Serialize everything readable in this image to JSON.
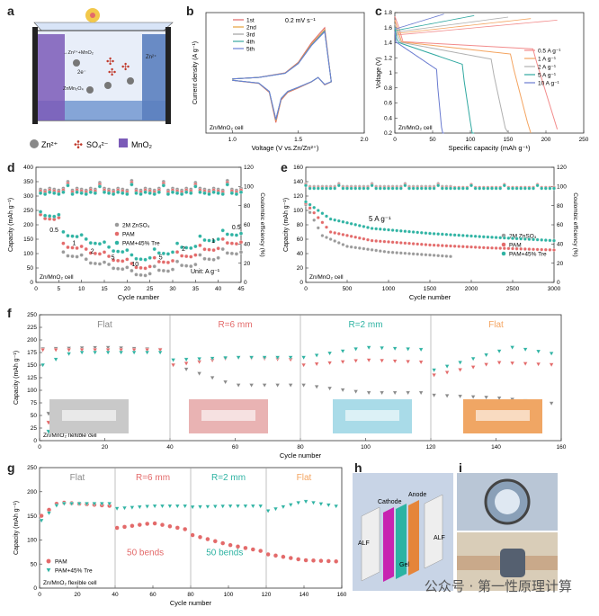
{
  "panels": {
    "a": {
      "label": "a",
      "legend": [
        "Zn²⁺",
        "SO₄²⁻",
        "MnO₂"
      ],
      "reaction_top": "→Zn²⁺+MnO₂",
      "reaction_bottom": "ZnMn₂O₄",
      "e_label": "2e⁻",
      "zn_label": "Zn²⁺"
    },
    "h": {
      "label": "h",
      "cathode": "Cathode",
      "anode": "Anode",
      "gel": "Gel",
      "alf_left": "ALF",
      "alf_right": "ALF"
    },
    "i": {
      "label": "i"
    }
  },
  "watermark": "公众号 · 第一性原理计算",
  "chart_data": [
    {
      "id": "b",
      "type": "line",
      "title": "",
      "xlabel": "Voltage (V vs.Zn/Zn²⁺)",
      "ylabel": "Current density (A g⁻¹)",
      "xlim": [
        0.8,
        2.0
      ],
      "xticks": [
        1.0,
        1.5,
        2.0
      ],
      "xtick_labels": [
        "1.0",
        "1.5",
        "2.0"
      ],
      "annotation": "Zn/MnO₂ cell",
      "rate": "0.2 mV s⁻¹",
      "series": [
        {
          "name": "1st",
          "color": "#e06666"
        },
        {
          "name": "2nd",
          "color": "#e6a23c"
        },
        {
          "name": "3rd",
          "color": "#a0a0a0"
        },
        {
          "name": "4th",
          "color": "#39a7a0"
        },
        {
          "name": "5th",
          "color": "#6b7fd7"
        }
      ],
      "curve": {
        "x": [
          1.0,
          1.2,
          1.28,
          1.33,
          1.37,
          1.42,
          1.5,
          1.6,
          1.65,
          1.7,
          1.75,
          1.7,
          1.6,
          1.5,
          1.4,
          1.2,
          1.0
        ],
        "y": [
          -0.05,
          -0.15,
          -0.45,
          -1.45,
          -0.7,
          -0.45,
          -0.3,
          -0.1,
          0.05,
          -0.2,
          -0.1,
          1.7,
          1.2,
          0.55,
          0.2,
          0.05,
          0.0
        ]
      }
    },
    {
      "id": "c",
      "type": "line",
      "xlabel": "Specific capacity (mAh g⁻¹)",
      "ylabel": "Voltage (V)",
      "xlim": [
        0,
        250
      ],
      "ylim": [
        0.2,
        1.8
      ],
      "xticks": [
        0,
        50,
        100,
        150,
        200,
        250
      ],
      "yticks": [
        0.2,
        0.4,
        0.6,
        0.8,
        1.0,
        1.2,
        1.4,
        1.6,
        1.8
      ],
      "annotation": "Zn/MnO₂ cell",
      "series": [
        {
          "name": "0.5 A g⁻¹",
          "color": "#f28b8b",
          "cap": 215
        },
        {
          "name": "1 A g⁻¹",
          "color": "#f4a460",
          "cap": 180
        },
        {
          "name": "2 A g⁻¹",
          "color": "#b0b0b0",
          "cap": 150
        },
        {
          "name": "5 A g⁻¹",
          "color": "#2fa8a0",
          "cap": 105
        },
        {
          "name": "10 A g⁻¹",
          "color": "#6a7bd0",
          "cap": 65
        }
      ]
    },
    {
      "id": "d",
      "type": "scatter",
      "xlabel": "Cycle number",
      "ylabel": "Capacity (mAh g⁻¹)",
      "y2label": "Coulombic efficiency (%)",
      "xlim": [
        0,
        45
      ],
      "ylim": [
        0,
        400
      ],
      "y2lim": [
        0,
        120
      ],
      "xticks": [
        0,
        5,
        10,
        15,
        20,
        25,
        30,
        35,
        40,
        45
      ],
      "yticks": [
        0,
        50,
        100,
        150,
        200,
        250,
        300,
        350,
        400
      ],
      "y2ticks": [
        0,
        20,
        40,
        60,
        80,
        100,
        120
      ],
      "annotation": "Zn/MnO₂ cell",
      "unit_note": "Unit: A g⁻¹",
      "rate_labels": [
        {
          "text": "0.5",
          "x": 3,
          "y": 175
        },
        {
          "text": "1",
          "x": 8,
          "y": 130
        },
        {
          "text": "2",
          "x": 12,
          "y": 102
        },
        {
          "text": "5",
          "x": 16.5,
          "y": 80
        },
        {
          "text": "10",
          "x": 21,
          "y": 57
        },
        {
          "text": "5",
          "x": 27,
          "y": 80
        },
        {
          "text": "2",
          "x": 32,
          "y": 110
        },
        {
          "text": "1",
          "x": 38.5,
          "y": 138
        },
        {
          "text": "0.5",
          "x": 43,
          "y": 185
        }
      ],
      "series": [
        {
          "name": "2M ZnSO₄",
          "color": "#9a9a9a",
          "marker": "circle",
          "capacity_steps": [
            [
              1,
              225
            ],
            [
              5,
              95
            ],
            [
              10,
              70
            ],
            [
              15,
              52
            ],
            [
              20,
              30
            ],
            [
              25,
              45
            ],
            [
              30,
              62
            ],
            [
              35,
              85
            ],
            [
              40,
              105
            ]
          ]
        },
        {
          "name": "PAM",
          "color": "#e36a6a",
          "marker": "circle",
          "capacity_steps": [
            [
              1,
              225
            ],
            [
              5,
              125
            ],
            [
              10,
              105
            ],
            [
              15,
              80
            ],
            [
              20,
              55
            ],
            [
              25,
              75
            ],
            [
              30,
              95
            ],
            [
              35,
              118
            ],
            [
              40,
              140
            ]
          ]
        },
        {
          "name": "PAM+45% Tre",
          "color": "#2fb3a3",
          "marker": "circle",
          "capacity_steps": [
            [
              1,
              235
            ],
            [
              5,
              165
            ],
            [
              10,
              140
            ],
            [
              15,
              112
            ],
            [
              20,
              85
            ],
            [
              25,
              105
            ],
            [
              30,
              125
            ],
            [
              35,
              150
            ],
            [
              40,
              170
            ]
          ]
        }
      ],
      "ce_level": 98
    },
    {
      "id": "e",
      "type": "scatter",
      "xlabel": "Cycle number",
      "ylabel": "Capacity (mAh g⁻¹)",
      "y2label": "Coulombic efficiency (%)",
      "xlim": [
        0,
        3000
      ],
      "ylim": [
        0,
        160
      ],
      "y2lim": [
        0,
        120
      ],
      "xticks": [
        0,
        500,
        1000,
        1500,
        2000,
        2500,
        3000
      ],
      "yticks": [
        0,
        20,
        40,
        60,
        80,
        100,
        120,
        140,
        160
      ],
      "y2ticks": [
        0,
        20,
        40,
        60,
        80,
        100,
        120
      ],
      "annotation": "Zn/MnO₂ cell",
      "rate_note": "5 A g⁻¹",
      "series": [
        {
          "name": "2M ZnSO₄",
          "color": "#9a9a9a",
          "end_cycle": 1750,
          "curve": [
            [
              0,
              108
            ],
            [
              200,
              65
            ],
            [
              500,
              50
            ],
            [
              1000,
              42
            ],
            [
              1500,
              38
            ],
            [
              1750,
              36
            ]
          ]
        },
        {
          "name": "PAM",
          "color": "#e36a6a",
          "end_cycle": 3000,
          "curve": [
            [
              0,
              110
            ],
            [
              300,
              70
            ],
            [
              800,
              58
            ],
            [
              1500,
              52
            ],
            [
              2200,
              48
            ],
            [
              3000,
              45
            ]
          ]
        },
        {
          "name": "PAM+45% Tre",
          "color": "#2fb3a3",
          "end_cycle": 3000,
          "curve": [
            [
              0,
              112
            ],
            [
              300,
              88
            ],
            [
              800,
              75
            ],
            [
              1500,
              68
            ],
            [
              2200,
              63
            ],
            [
              3000,
              58
            ]
          ]
        }
      ],
      "ce_level": 100
    },
    {
      "id": "f",
      "type": "scatter",
      "xlabel": "Cycle number",
      "ylabel": "Capacity (mAh g⁻¹)",
      "xlim": [
        0,
        160
      ],
      "ylim": [
        0,
        250
      ],
      "xticks": [
        0,
        20,
        40,
        60,
        80,
        100,
        120,
        140,
        160
      ],
      "yticks": [
        0,
        25,
        50,
        75,
        100,
        125,
        150,
        175,
        200,
        225,
        250
      ],
      "annotation": "Zn/MnO₂ flexible cell",
      "sections": [
        {
          "label": "Flat",
          "color": "#8a8a8a",
          "center": 20
        },
        {
          "label": "R=6 mm",
          "color": "#e36a6a",
          "center": 60
        },
        {
          "label": "R=2 mm",
          "color": "#2fb3a3",
          "center": 100
        },
        {
          "label": "Flat",
          "color": "#f4a460",
          "center": 140
        }
      ],
      "dividers": [
        40,
        80,
        120
      ],
      "series": [
        {
          "name": "2M ZnSO₄",
          "color": "#8a8a8a",
          "marker": "triangle-down",
          "curve": [
            [
              1,
              182
            ],
            [
              20,
              185
            ],
            [
              40,
              180
            ],
            [
              41,
              150
            ],
            [
              60,
              110
            ],
            [
              80,
              110
            ],
            [
              81,
              110
            ],
            [
              100,
              95
            ],
            [
              120,
              95
            ],
            [
              121,
              90
            ],
            [
              140,
              85
            ],
            [
              160,
              72
            ]
          ]
        },
        {
          "name": "PAM",
          "color": "#e36a6a",
          "marker": "triangle-down",
          "curve": [
            [
              1,
              180
            ],
            [
              20,
              180
            ],
            [
              40,
              180
            ],
            [
              41,
              150
            ],
            [
              60,
              165
            ],
            [
              80,
              160
            ],
            [
              81,
              150
            ],
            [
              100,
              160
            ],
            [
              120,
              155
            ],
            [
              121,
              130
            ],
            [
              140,
              155
            ],
            [
              160,
              150
            ]
          ]
        },
        {
          "name": "PAM+45% Tre",
          "color": "#2fb3a3",
          "marker": "triangle-down",
          "curve": [
            [
              1,
              150
            ],
            [
              10,
              175
            ],
            [
              40,
              175
            ],
            [
              41,
              160
            ],
            [
              60,
              165
            ],
            [
              80,
              165
            ],
            [
              81,
              165
            ],
            [
              100,
              185
            ],
            [
              120,
              180
            ],
            [
              121,
              140
            ],
            [
              145,
              185
            ],
            [
              160,
              170
            ]
          ]
        }
      ]
    },
    {
      "id": "g",
      "type": "scatter",
      "xlabel": "Cycle number",
      "ylabel": "Capacity (mAh g⁻¹)",
      "xlim": [
        0,
        160
      ],
      "ylim": [
        0,
        250
      ],
      "xticks": [
        0,
        20,
        40,
        60,
        80,
        100,
        120,
        140,
        160
      ],
      "yticks": [
        0,
        50,
        100,
        150,
        200,
        250
      ],
      "annotation": "Zn/MnO₂ flexible cell",
      "sections": [
        {
          "label": "Flat",
          "color": "#8a8a8a",
          "center": 20
        },
        {
          "label": "R=6 mm",
          "color": "#e36a6a",
          "center": 60
        },
        {
          "label": "R=2 mm",
          "color": "#2fb3a3",
          "center": 100
        },
        {
          "label": "Flat",
          "color": "#f4a460",
          "center": 140
        }
      ],
      "dividers": [
        40,
        80,
        120
      ],
      "bends_labels": [
        {
          "text": "50 bends",
          "color": "#e36a6a",
          "x": 56,
          "y": 68
        },
        {
          "text": "50 bends",
          "color": "#2fb3a3",
          "x": 98,
          "y": 68
        }
      ],
      "series": [
        {
          "name": "PAM",
          "color": "#e36a6a",
          "marker": "circle",
          "curve": [
            [
              1,
              150
            ],
            [
              10,
              178
            ],
            [
              40,
              170
            ],
            [
              41,
              125
            ],
            [
              60,
              135
            ],
            [
              80,
              120
            ],
            [
              81,
              110
            ],
            [
              100,
              90
            ],
            [
              120,
              75
            ],
            [
              121,
              70
            ],
            [
              140,
              58
            ],
            [
              160,
              55
            ]
          ]
        },
        {
          "name": "PAM+45% Tre",
          "color": "#2fb3a3",
          "marker": "triangle-down",
          "curve": [
            [
              1,
              140
            ],
            [
              10,
              175
            ],
            [
              40,
              175
            ],
            [
              41,
              165
            ],
            [
              60,
              170
            ],
            [
              80,
              170
            ],
            [
              81,
              168
            ],
            [
              100,
              170
            ],
            [
              120,
              170
            ],
            [
              121,
              160
            ],
            [
              140,
              180
            ],
            [
              160,
              168
            ]
          ]
        }
      ]
    }
  ]
}
